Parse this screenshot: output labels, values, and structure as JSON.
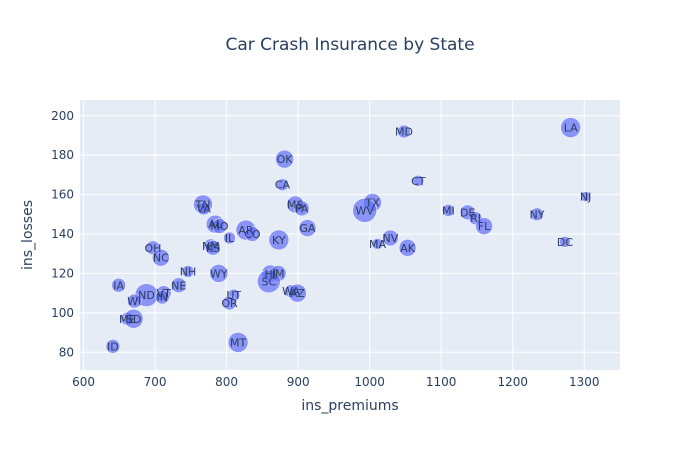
{
  "chart_data": {
    "type": "scatter",
    "title": "Car Crash Insurance by State",
    "xlabel": "ins_premiums",
    "ylabel": "ins_losses",
    "xlim": [
      595,
      1350
    ],
    "ylim": [
      71,
      208
    ],
    "xticks": [
      600,
      700,
      800,
      900,
      1000,
      1100,
      1200,
      1300
    ],
    "yticks": [
      80,
      100,
      120,
      140,
      160,
      180,
      200
    ],
    "grid": true,
    "colors": {
      "plot_bg": "#e5ecf6",
      "grid": "#ffffff",
      "marker": "#636efa"
    },
    "points": [
      {
        "label": "LA",
        "x": 1281,
        "y": 194,
        "size": 20
      },
      {
        "label": "MD",
        "x": 1048,
        "y": 192,
        "size": 13
      },
      {
        "label": "OK",
        "x": 881,
        "y": 178,
        "size": 18
      },
      {
        "label": "CT",
        "x": 1068,
        "y": 167,
        "size": 11
      },
      {
        "label": "CA",
        "x": 878,
        "y": 165,
        "size": 12
      },
      {
        "label": "NJ",
        "x": 1302,
        "y": 159,
        "size": 10
      },
      {
        "label": "TX",
        "x": 1004,
        "y": 156,
        "size": 18
      },
      {
        "label": "TN",
        "x": 767,
        "y": 155,
        "size": 19
      },
      {
        "label": "VA",
        "x": 768,
        "y": 153,
        "size": 13
      },
      {
        "label": "MS",
        "x": 896,
        "y": 155,
        "size": 17
      },
      {
        "label": "PA",
        "x": 905,
        "y": 153,
        "size": 15
      },
      {
        "label": "WV",
        "x": 993,
        "y": 152,
        "size": 24
      },
      {
        "label": "MI",
        "x": 1110,
        "y": 152,
        "size": 12
      },
      {
        "label": "DE",
        "x": 1137,
        "y": 151,
        "size": 15
      },
      {
        "label": "RI",
        "x": 1148,
        "y": 148,
        "size": 13
      },
      {
        "label": "NY",
        "x": 1234,
        "y": 150,
        "size": 13
      },
      {
        "label": "FL",
        "x": 1160,
        "y": 144,
        "size": 17
      },
      {
        "label": "AL",
        "x": 784,
        "y": 145,
        "size": 18
      },
      {
        "label": "MO",
        "x": 790,
        "y": 144,
        "size": 15
      },
      {
        "label": "AR",
        "x": 827,
        "y": 142,
        "size": 20
      },
      {
        "label": "CO",
        "x": 836,
        "y": 140,
        "size": 15
      },
      {
        "label": "GA",
        "x": 913,
        "y": 143,
        "size": 17
      },
      {
        "label": "IL",
        "x": 804,
        "y": 138,
        "size": 12
      },
      {
        "label": "NV",
        "x": 1029,
        "y": 138,
        "size": 16
      },
      {
        "label": "MA",
        "x": 1011,
        "y": 135,
        "size": 11
      },
      {
        "label": "AK",
        "x": 1053,
        "y": 133,
        "size": 17
      },
      {
        "label": "DC",
        "x": 1273,
        "y": 136,
        "size": 11
      },
      {
        "label": "KY",
        "x": 873,
        "y": 137,
        "size": 20
      },
      {
        "label": "OH",
        "x": 697,
        "y": 133,
        "size": 14
      },
      {
        "label": "NM",
        "x": 778,
        "y": 134,
        "size": 14
      },
      {
        "label": "KS",
        "x": 781,
        "y": 133,
        "size": 15
      },
      {
        "label": "NC",
        "x": 708,
        "y": 128,
        "size": 17
      },
      {
        "label": "WY",
        "x": 789,
        "y": 120,
        "size": 18
      },
      {
        "label": "NH",
        "x": 746,
        "y": 121,
        "size": 12
      },
      {
        "label": "HI",
        "x": 861,
        "y": 120,
        "size": 17
      },
      {
        "label": "IM",
        "x": 872,
        "y": 120,
        "size": 16
      },
      {
        "label": "SC",
        "x": 859,
        "y": 116,
        "size": 23
      },
      {
        "label": "IA",
        "x": 649,
        "y": 114,
        "size": 14
      },
      {
        "label": "NE",
        "x": 733,
        "y": 114,
        "size": 15
      },
      {
        "label": "ND",
        "x": 688,
        "y": 109,
        "size": 23
      },
      {
        "label": "VT",
        "x": 712,
        "y": 110,
        "size": 15
      },
      {
        "label": "IN",
        "x": 710,
        "y": 108,
        "size": 14
      },
      {
        "label": "UT",
        "x": 810,
        "y": 109,
        "size": 12
      },
      {
        "label": "WA",
        "x": 890,
        "y": 111,
        "size": 13
      },
      {
        "label": "AZ",
        "x": 899,
        "y": 110,
        "size": 18
      },
      {
        "label": "WI",
        "x": 671,
        "y": 106,
        "size": 14
      },
      {
        "label": "OR",
        "x": 804,
        "y": 105,
        "size": 14
      },
      {
        "label": "ME",
        "x": 661,
        "y": 97,
        "size": 13
      },
      {
        "label": "SD",
        "x": 670,
        "y": 97,
        "size": 19
      },
      {
        "label": "MT",
        "x": 816,
        "y": 85,
        "size": 20
      },
      {
        "label": "ID",
        "x": 641,
        "y": 83,
        "size": 14
      }
    ]
  }
}
